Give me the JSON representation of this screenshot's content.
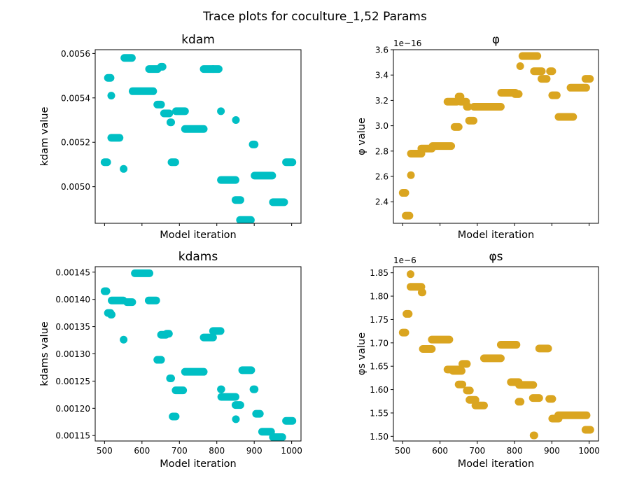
{
  "figure": {
    "title": "Trace plots for coculture_1,52 Params"
  },
  "chart_data": [
    {
      "type": "scatter",
      "title": "kdam",
      "xlabel": "Model iteration",
      "ylabel": "kdam value",
      "xlim": [
        475,
        1025
      ],
      "ylim": [
        0.004835,
        0.005617
      ],
      "x_ticks": [
        500,
        600,
        700,
        800,
        900,
        1000
      ],
      "x_tick_labels_shown": false,
      "y_ticks": [
        0.005,
        0.0052,
        0.0054,
        0.0056
      ],
      "y_tick_labels": [
        "0.0050",
        "0.0052",
        "0.0054",
        "0.0056"
      ],
      "offset_text": "",
      "color": "#00BFC4",
      "segments": [
        [
          500,
          507,
          0.00511
        ],
        [
          509,
          516,
          0.00549
        ],
        [
          518,
          518,
          0.00541
        ],
        [
          518,
          540,
          0.00522
        ],
        [
          551,
          551,
          0.00508
        ],
        [
          553,
          573,
          0.00558
        ],
        [
          575,
          630,
          0.00543
        ],
        [
          619,
          642,
          0.00553
        ],
        [
          641,
          651,
          0.00537
        ],
        [
          651,
          655,
          0.00554
        ],
        [
          659,
          673,
          0.00533
        ],
        [
          676,
          678,
          0.00529
        ],
        [
          679,
          689,
          0.00511
        ],
        [
          691,
          715,
          0.00534
        ],
        [
          715,
          765,
          0.00526
        ],
        [
          765,
          790,
          0.00553
        ],
        [
          790,
          805,
          0.00553
        ],
        [
          811,
          811,
          0.00534
        ],
        [
          811,
          850,
          0.00503
        ],
        [
          851,
          851,
          0.0053
        ],
        [
          850,
          863,
          0.00494
        ],
        [
          862,
          891,
          0.00485
        ],
        [
          896,
          901,
          0.00519
        ],
        [
          901,
          948,
          0.00505
        ],
        [
          950,
          980,
          0.00493
        ],
        [
          985,
          1002,
          0.00511
        ]
      ]
    },
    {
      "type": "scatter",
      "title": "φ",
      "xlabel": "Model iteration",
      "ylabel": "φ value",
      "xlim": [
        475,
        1025
      ],
      "ylim": [
        2.23e-16,
        3.6e-16
      ],
      "x_ticks": [
        500,
        600,
        700,
        800,
        900,
        1000
      ],
      "x_tick_labels_shown": false,
      "y_ticks": [
        2.4e-16,
        2.6e-16,
        2.8e-16,
        3e-16,
        3.2e-16,
        3.4e-16,
        3.6e-16
      ],
      "y_tick_labels": [
        "2.4",
        "2.6",
        "2.8",
        "3.0",
        "3.2",
        "3.4",
        "3.6"
      ],
      "offset_text": "1e−16",
      "color": "#DAA520",
      "segments": [
        [
          500,
          507,
          2.47e-16
        ],
        [
          508,
          518,
          2.29e-16
        ],
        [
          522,
          522,
          2.61e-16
        ],
        [
          522,
          550,
          2.78e-16
        ],
        [
          550,
          578,
          2.82e-16
        ],
        [
          580,
          630,
          2.84e-16
        ],
        [
          620,
          645,
          3.19e-16
        ],
        [
          639,
          650,
          2.99e-16
        ],
        [
          650,
          655,
          3.23e-16
        ],
        [
          655,
          670,
          3.19e-16
        ],
        [
          672,
          676,
          3.15e-16
        ],
        [
          678,
          690,
          3.04e-16
        ],
        [
          691,
          763,
          3.15e-16
        ],
        [
          764,
          802,
          3.26e-16
        ],
        [
          801,
          811,
          3.25e-16
        ],
        [
          815,
          815,
          3.47e-16
        ],
        [
          821,
          861,
          3.55e-16
        ],
        [
          852,
          873,
          3.43e-16
        ],
        [
          872,
          886,
          3.37e-16
        ],
        [
          895,
          901,
          3.43e-16
        ],
        [
          901,
          913,
          3.24e-16
        ],
        [
          918,
          957,
          3.07e-16
        ],
        [
          950,
          992,
          3.3e-16
        ],
        [
          990,
          1002,
          3.37e-16
        ]
      ]
    },
    {
      "type": "scatter",
      "title": "kdams",
      "xlabel": "Model iteration",
      "ylabel": "kdams value",
      "xlim": [
        475,
        1025
      ],
      "ylim": [
        0.00114,
        0.00146
      ],
      "x_ticks": [
        500,
        600,
        700,
        800,
        900,
        1000
      ],
      "x_tick_labels": [
        "500",
        "600",
        "700",
        "800",
        "900",
        "1000"
      ],
      "y_ticks": [
        0.00115,
        0.0012,
        0.00125,
        0.0013,
        0.00135,
        0.0014,
        0.00145
      ],
      "y_tick_labels": [
        "0.00115",
        "0.00120",
        "0.00125",
        "0.00130",
        "0.00135",
        "0.00140",
        "0.00145"
      ],
      "offset_text": "",
      "color": "#00BFC4",
      "segments": [
        [
          500,
          505,
          0.001415
        ],
        [
          509,
          516,
          0.001375
        ],
        [
          517,
          519,
          0.001372
        ],
        [
          519,
          550,
          0.001398
        ],
        [
          551,
          551,
          0.001326
        ],
        [
          560,
          574,
          0.001395
        ],
        [
          581,
          620,
          0.001448
        ],
        [
          618,
          638,
          0.001398
        ],
        [
          641,
          651,
          0.001289
        ],
        [
          651,
          664,
          0.001335
        ],
        [
          666,
          672,
          0.001337
        ],
        [
          675,
          678,
          0.001255
        ],
        [
          682,
          690,
          0.001185
        ],
        [
          690,
          710,
          0.001233
        ],
        [
          715,
          765,
          0.001267
        ],
        [
          765,
          790,
          0.00133
        ],
        [
          790,
          810,
          0.001342
        ],
        [
          811,
          812,
          0.001235
        ],
        [
          812,
          850,
          0.001221
        ],
        [
          851,
          851,
          0.00118
        ],
        [
          850,
          863,
          0.001206
        ],
        [
          868,
          892,
          0.00127
        ],
        [
          898,
          901,
          0.001235
        ],
        [
          905,
          915,
          0.00119
        ],
        [
          921,
          945,
          0.001157
        ],
        [
          950,
          975,
          0.001147
        ],
        [
          985,
          1002,
          0.001177
        ]
      ]
    },
    {
      "type": "scatter",
      "title": "φs",
      "xlabel": "Model iteration",
      "ylabel": "φs value",
      "xlim": [
        475,
        1025
      ],
      "ylim": [
        1.49e-06,
        1.863e-06
      ],
      "x_ticks": [
        500,
        600,
        700,
        800,
        900,
        1000
      ],
      "x_tick_labels": [
        "500",
        "600",
        "700",
        "800",
        "900",
        "1000"
      ],
      "y_ticks": [
        1.5e-06,
        1.55e-06,
        1.6e-06,
        1.65e-06,
        1.7e-06,
        1.75e-06,
        1.8e-06,
        1.85e-06
      ],
      "y_tick_labels": [
        "1.50",
        "1.55",
        "1.60",
        "1.65",
        "1.70",
        "1.75",
        "1.80",
        "1.85"
      ],
      "offset_text": "1e−6",
      "color": "#DAA520",
      "segments": [
        [
          500,
          507,
          1.722e-06
        ],
        [
          510,
          516,
          1.762e-06
        ],
        [
          521,
          521,
          1.847e-06
        ],
        [
          521,
          550,
          1.82e-06
        ],
        [
          551,
          553,
          1.808e-06
        ],
        [
          554,
          578,
          1.687e-06
        ],
        [
          578,
          625,
          1.707e-06
        ],
        [
          620,
          655,
          1.643e-06
        ],
        [
          635,
          658,
          1.64e-06
        ],
        [
          650,
          660,
          1.611e-06
        ],
        [
          660,
          672,
          1.655e-06
        ],
        [
          672,
          680,
          1.598e-06
        ],
        [
          679,
          695,
          1.578e-06
        ],
        [
          695,
          718,
          1.566e-06
        ],
        [
          718,
          763,
          1.667e-06
        ],
        [
          763,
          805,
          1.696e-06
        ],
        [
          790,
          811,
          1.616e-06
        ],
        [
          811,
          816,
          1.574e-06
        ],
        [
          812,
          850,
          1.61e-06
        ],
        [
          851,
          853,
          1.502e-06
        ],
        [
          849,
          866,
          1.582e-06
        ],
        [
          866,
          890,
          1.688e-06
        ],
        [
          893,
          901,
          1.58e-06
        ],
        [
          901,
          918,
          1.538e-06
        ],
        [
          917,
          993,
          1.545e-06
        ],
        [
          990,
          1003,
          1.514e-06
        ]
      ]
    }
  ]
}
